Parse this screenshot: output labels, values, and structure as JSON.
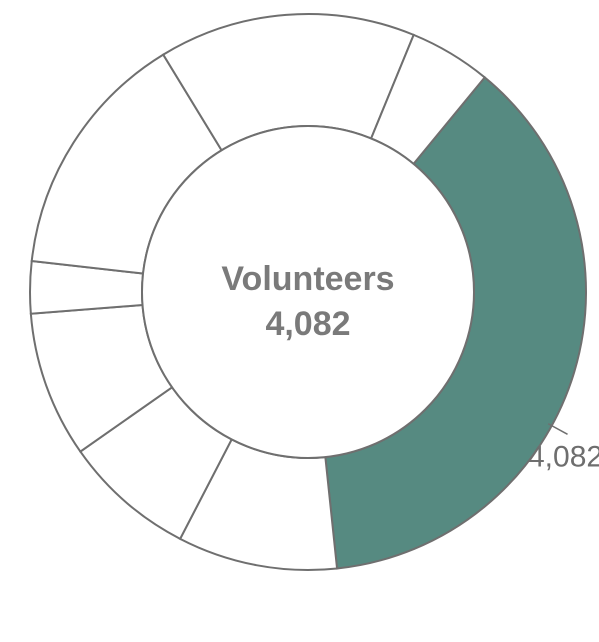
{
  "chart_data": {
    "type": "pie",
    "variant": "donut",
    "center_label": {
      "title": "Volunteers",
      "value": "4,082"
    },
    "slices": [
      {
        "value": 4082,
        "label": "4,082",
        "highlighted": true,
        "color": "#568a81"
      },
      {
        "value": 1013,
        "highlighted": false,
        "color": "#ffffff"
      },
      {
        "value": 837,
        "highlighted": false,
        "color": "#ffffff"
      },
      {
        "value": 927,
        "highlighted": false,
        "color": "#ffffff"
      },
      {
        "value": 330,
        "highlighted": false,
        "color": "#ffffff"
      },
      {
        "value": 1585,
        "highlighted": false,
        "color": "#ffffff"
      },
      {
        "value": 1630,
        "highlighted": false,
        "color": "#ffffff"
      },
      {
        "value": 520,
        "highlighted": false,
        "color": "#ffffff"
      }
    ],
    "start_angle_deg": 84,
    "direction": "clockwise-from-highlighted-end",
    "legend": "none"
  }
}
